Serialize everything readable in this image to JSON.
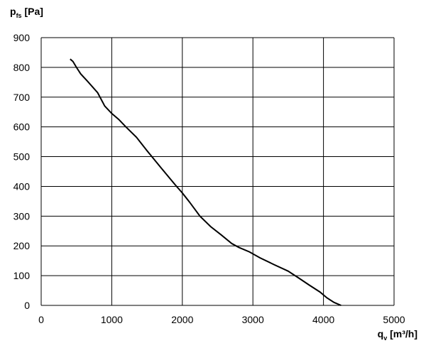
{
  "chart_data": {
    "type": "line",
    "ylabel": {
      "symbol": "p",
      "subscript": "fs",
      "unit": "[Pa]"
    },
    "xlabel": {
      "symbol": "q",
      "subscript": "v",
      "unit": "[m³/h]"
    },
    "xlim": [
      0,
      5000
    ],
    "ylim": [
      0,
      900
    ],
    "x_ticks": [
      0,
      1000,
      2000,
      3000,
      4000,
      5000
    ],
    "y_ticks": [
      0,
      100,
      200,
      300,
      400,
      500,
      600,
      700,
      800,
      900
    ],
    "grid": true,
    "series": [
      {
        "color": "#000000",
        "points": [
          [
            410,
            828
          ],
          [
            450,
            820
          ],
          [
            500,
            800
          ],
          [
            560,
            778
          ],
          [
            650,
            755
          ],
          [
            800,
            715
          ],
          [
            900,
            670
          ],
          [
            1000,
            645
          ],
          [
            1100,
            625
          ],
          [
            1200,
            600
          ],
          [
            1350,
            565
          ],
          [
            1500,
            520
          ],
          [
            1700,
            462
          ],
          [
            1900,
            405
          ],
          [
            2000,
            378
          ],
          [
            2100,
            348
          ],
          [
            2250,
            300
          ],
          [
            2400,
            265
          ],
          [
            2550,
            237
          ],
          [
            2700,
            208
          ],
          [
            2800,
            195
          ],
          [
            2950,
            180
          ],
          [
            3100,
            160
          ],
          [
            3300,
            137
          ],
          [
            3500,
            115
          ],
          [
            3650,
            92
          ],
          [
            3800,
            68
          ],
          [
            3950,
            45
          ],
          [
            4050,
            25
          ],
          [
            4150,
            10
          ],
          [
            4250,
            0
          ]
        ]
      }
    ]
  }
}
